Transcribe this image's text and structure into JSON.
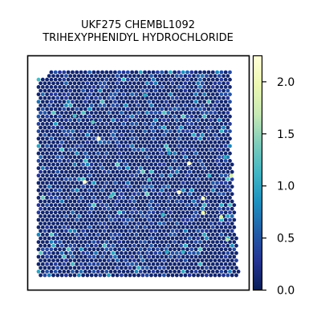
{
  "title": {
    "line1": "UKF275 CHEMBL1092",
    "line2": "TRIHEXYPHENIDYL HYDROCHLORIDE"
  },
  "chart_data": {
    "type": "scatter",
    "subtype": "spatial-spot-map",
    "title": "UKF275 CHEMBL1092 TRIHEXYPHENIDYL HYDROCHLORIDE",
    "xlabel": "",
    "ylabel": "",
    "axis_ticks_shown": false,
    "grid": false,
    "colormap": "YlGnBu",
    "colorbar": {
      "min": 0.0,
      "max": 2.25,
      "ticks": [
        0.0,
        0.5,
        1.0,
        1.5,
        2.0
      ],
      "tick_labels": [
        "0.0",
        "0.5",
        "1.0",
        "1.5",
        "2.0"
      ],
      "placement": "right"
    },
    "background_value_approx": 0.1,
    "notable_spots": [
      {
        "x": 0.3,
        "y": 0.67,
        "value": 2.2
      },
      {
        "x": 0.75,
        "y": 0.55,
        "value": 2.2
      },
      {
        "x": 0.23,
        "y": 0.46,
        "value": 2.2
      },
      {
        "x": 0.7,
        "y": 0.41,
        "value": 2.2
      },
      {
        "x": 0.82,
        "y": 0.38,
        "value": 2.1
      },
      {
        "x": 0.82,
        "y": 0.31,
        "value": 2.0
      },
      {
        "x": 0.91,
        "y": 0.29,
        "value": 1.8
      },
      {
        "x": 0.96,
        "y": 0.49,
        "value": 1.8
      },
      {
        "x": 0.94,
        "y": 0.18,
        "value": 1.6
      },
      {
        "x": 0.27,
        "y": 0.75,
        "value": 1.3
      },
      {
        "x": 0.18,
        "y": 0.78,
        "value": 1.2
      },
      {
        "x": 0.36,
        "y": 0.39,
        "value": 1.2
      },
      {
        "x": 0.62,
        "y": 0.3,
        "value": 1.1
      },
      {
        "x": 0.55,
        "y": 0.47,
        "value": 1.2
      },
      {
        "x": 0.64,
        "y": 0.12,
        "value": 1.0
      },
      {
        "x": 0.72,
        "y": 0.12,
        "value": 1.1
      },
      {
        "x": 0.85,
        "y": 0.49,
        "value": 1.0
      },
      {
        "x": 0.93,
        "y": 0.58,
        "value": 1.0
      },
      {
        "x": 0.53,
        "y": 0.88,
        "value": 1.0
      },
      {
        "x": 0.65,
        "y": 0.6,
        "value": 0.9
      }
    ]
  }
}
